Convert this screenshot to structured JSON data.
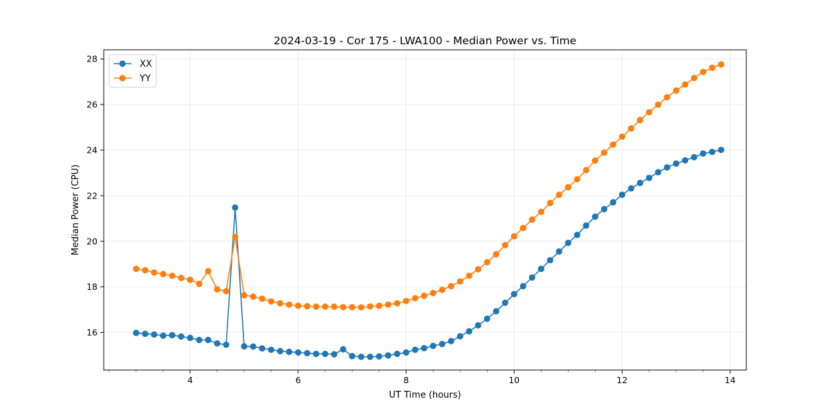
{
  "chart_data": {
    "type": "line",
    "title": "2024-03-19 - Cor 175 - LWA100 - Median Power vs. Time",
    "xlabel": "UT Time (hours)",
    "ylabel": "Median Power (CPU)",
    "xlim": [
      2.4,
      14.3
    ],
    "ylim": [
      14.35,
      28.4
    ],
    "xticks": [
      4,
      6,
      8,
      10,
      12,
      14
    ],
    "yticks": [
      16,
      18,
      20,
      22,
      24,
      26,
      28
    ],
    "xtick_labels": [
      "4",
      "6",
      "8",
      "10",
      "12",
      "14"
    ],
    "ytick_labels": [
      "16",
      "18",
      "20",
      "22",
      "24",
      "26",
      "28"
    ],
    "grid": true,
    "legend_position": "top-left",
    "x": [
      3.0,
      3.167,
      3.333,
      3.5,
      3.667,
      3.833,
      4.0,
      4.167,
      4.333,
      4.5,
      4.667,
      4.833,
      5.0,
      5.167,
      5.333,
      5.5,
      5.667,
      5.833,
      6.0,
      6.167,
      6.333,
      6.5,
      6.667,
      6.833,
      7.0,
      7.167,
      7.333,
      7.5,
      7.667,
      7.833,
      8.0,
      8.167,
      8.333,
      8.5,
      8.667,
      8.833,
      9.0,
      9.167,
      9.333,
      9.5,
      9.667,
      9.833,
      10.0,
      10.167,
      10.333,
      10.5,
      10.667,
      10.833,
      11.0,
      11.167,
      11.333,
      11.5,
      11.667,
      11.833,
      12.0,
      12.167,
      12.333,
      12.5,
      12.667,
      12.833,
      13.0,
      13.167,
      13.333,
      13.5,
      13.667,
      13.833
    ],
    "series": [
      {
        "name": "XX",
        "color": "#1f77b4",
        "values": [
          15.98,
          15.94,
          15.91,
          15.86,
          15.88,
          15.82,
          15.76,
          15.67,
          15.67,
          15.52,
          15.46,
          21.48,
          15.39,
          15.38,
          15.3,
          15.24,
          15.18,
          15.15,
          15.12,
          15.09,
          15.06,
          15.06,
          15.04,
          15.26,
          14.96,
          14.93,
          14.93,
          14.95,
          14.99,
          15.06,
          15.12,
          15.24,
          15.31,
          15.41,
          15.49,
          15.62,
          15.83,
          16.05,
          16.31,
          16.6,
          16.93,
          17.3,
          17.68,
          18.03,
          18.41,
          18.79,
          19.17,
          19.55,
          19.93,
          20.28,
          20.69,
          21.08,
          21.41,
          21.71,
          22.04,
          22.32,
          22.56,
          22.78,
          23.03,
          23.24,
          23.41,
          23.55,
          23.69,
          23.85,
          23.92,
          24.01
        ]
      },
      {
        "name": "YY",
        "color": "#ff7f0e",
        "values": [
          18.79,
          18.73,
          18.63,
          18.56,
          18.49,
          18.39,
          18.31,
          18.13,
          18.69,
          17.89,
          17.81,
          20.19,
          17.63,
          17.57,
          17.48,
          17.36,
          17.28,
          17.22,
          17.17,
          17.15,
          17.13,
          17.13,
          17.13,
          17.11,
          17.11,
          17.1,
          17.14,
          17.17,
          17.22,
          17.28,
          17.38,
          17.5,
          17.61,
          17.73,
          17.87,
          18.03,
          18.24,
          18.49,
          18.77,
          19.08,
          19.43,
          19.83,
          20.22,
          20.58,
          20.95,
          21.29,
          21.68,
          22.04,
          22.37,
          22.72,
          23.12,
          23.54,
          23.89,
          24.24,
          24.59,
          24.95,
          25.32,
          25.66,
          25.99,
          26.32,
          26.61,
          26.88,
          27.16,
          27.43,
          27.61,
          27.76
        ]
      }
    ]
  }
}
